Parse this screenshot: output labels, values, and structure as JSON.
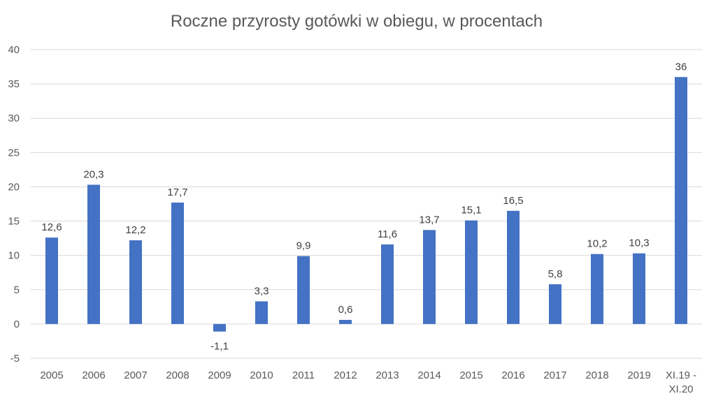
{
  "chart_data": {
    "type": "bar",
    "title": "Roczne przyrosty gotówki w obiegu, w procentach",
    "xlabel": "",
    "ylabel": "",
    "categories": [
      "2005",
      "2006",
      "2007",
      "2008",
      "2009",
      "2010",
      "2011",
      "2012",
      "2013",
      "2014",
      "2015",
      "2016",
      "2017",
      "2018",
      "2019",
      "XI.19 - XI.20"
    ],
    "category_lines": [
      [
        "2005"
      ],
      [
        "2006"
      ],
      [
        "2007"
      ],
      [
        "2008"
      ],
      [
        "2009"
      ],
      [
        "2010"
      ],
      [
        "2011"
      ],
      [
        "2012"
      ],
      [
        "2013"
      ],
      [
        "2014"
      ],
      [
        "2015"
      ],
      [
        "2016"
      ],
      [
        "2017"
      ],
      [
        "2018"
      ],
      [
        "2019"
      ],
      [
        "XI.19 -",
        "XI.20"
      ]
    ],
    "values": [
      12.6,
      20.3,
      12.2,
      17.7,
      -1.1,
      3.3,
      9.9,
      0.6,
      11.6,
      13.7,
      15.1,
      16.5,
      5.8,
      10.2,
      10.3,
      36
    ],
    "data_labels": [
      "12,6",
      "20,3",
      "12,2",
      "17,7",
      "-1,1",
      "3,3",
      "9,9",
      "0,6",
      "11,6",
      "13,7",
      "15,1",
      "16,5",
      "5,8",
      "10,2",
      "10,3",
      "36"
    ],
    "ylim": [
      -5,
      40
    ],
    "yticks": [
      -5,
      0,
      5,
      10,
      15,
      20,
      25,
      30,
      35,
      40
    ],
    "ytick_labels": [
      "-5",
      "0",
      "5",
      "10",
      "15",
      "20",
      "25",
      "30",
      "35",
      "40"
    ],
    "grid": true,
    "legend": "none",
    "bar_color": "#4472c4"
  }
}
